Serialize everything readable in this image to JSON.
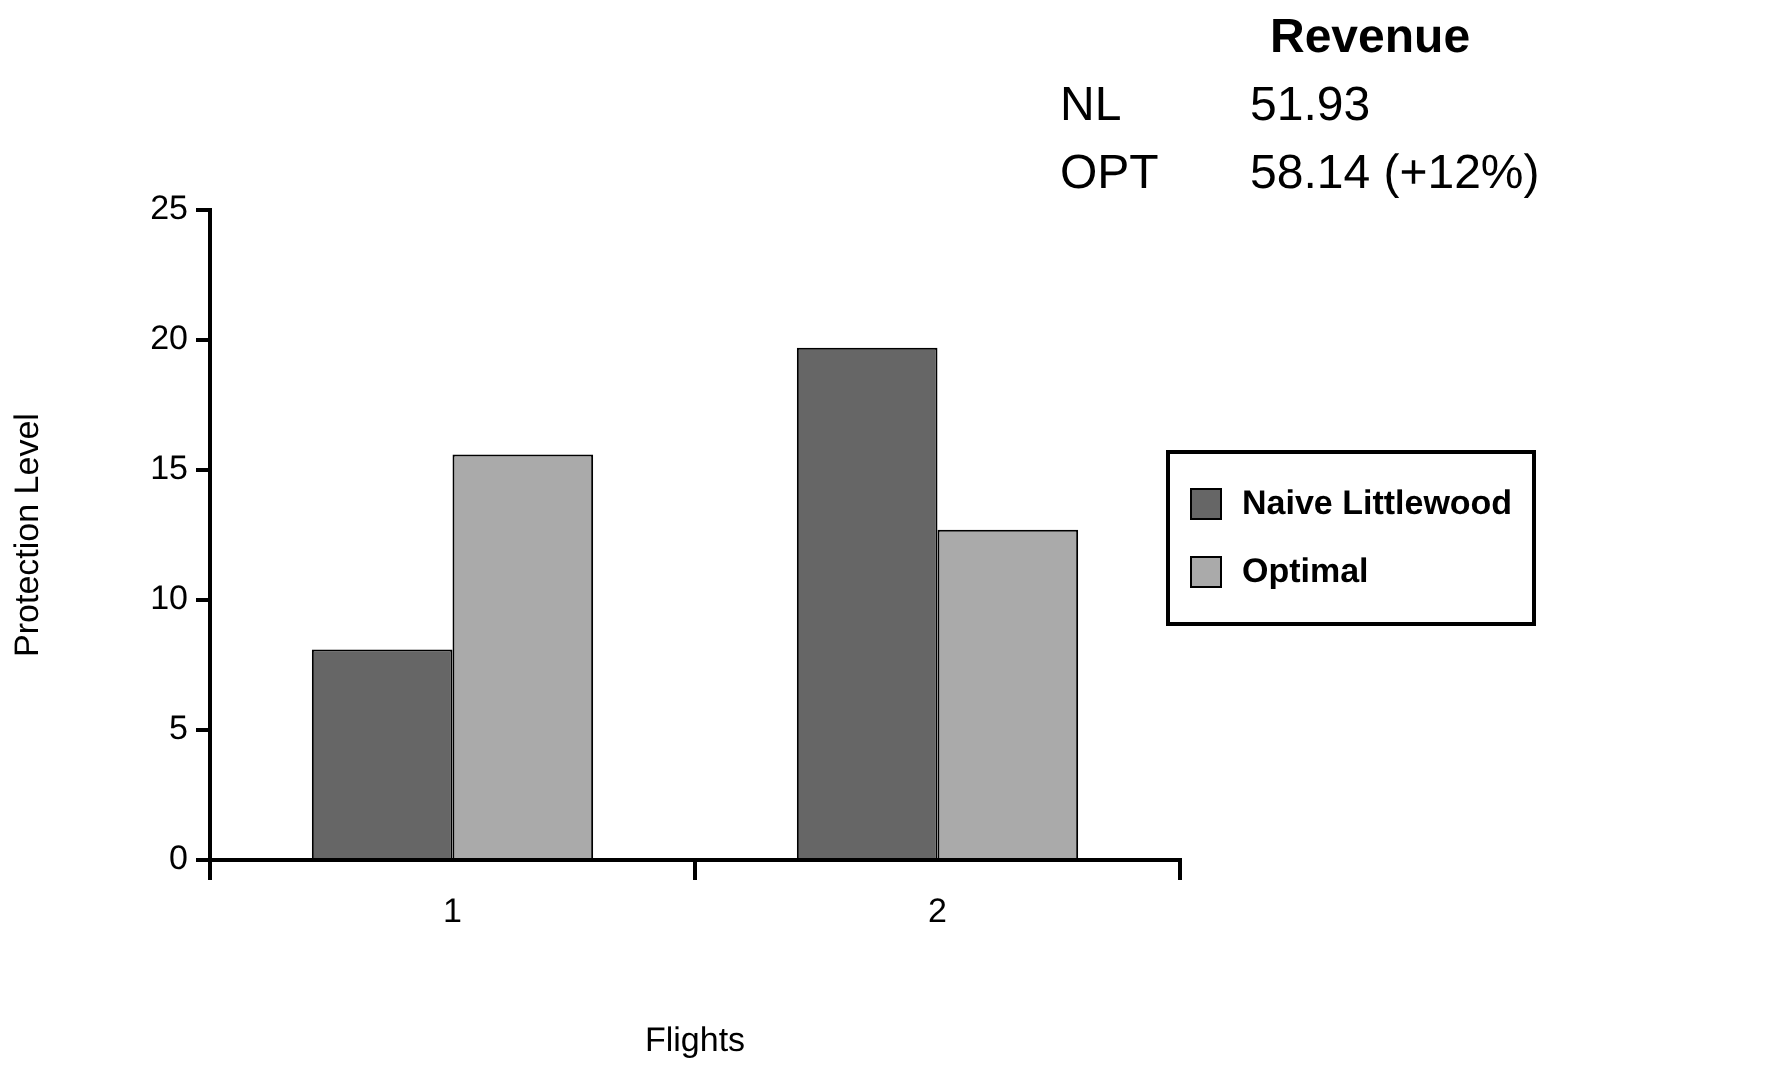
{
  "chart_data": {
    "type": "bar",
    "xlabel": "Flights",
    "ylabel": "Protection Level",
    "categories": [
      "1",
      "2"
    ],
    "series": [
      {
        "name": "Naive Littlewood",
        "color": "#666666",
        "values": [
          8.1,
          19.7
        ]
      },
      {
        "name": "Optimal",
        "color": "#aaaaaa",
        "values": [
          15.6,
          12.7
        ]
      }
    ],
    "ylim": [
      0,
      25
    ],
    "yticks": [
      0,
      5,
      10,
      15,
      20,
      25
    ],
    "grid": false,
    "legend": "right",
    "annotations": [
      "Revenue",
      "NL",
      "51.93",
      "OPT",
      "58.14 (+12%)"
    ]
  }
}
